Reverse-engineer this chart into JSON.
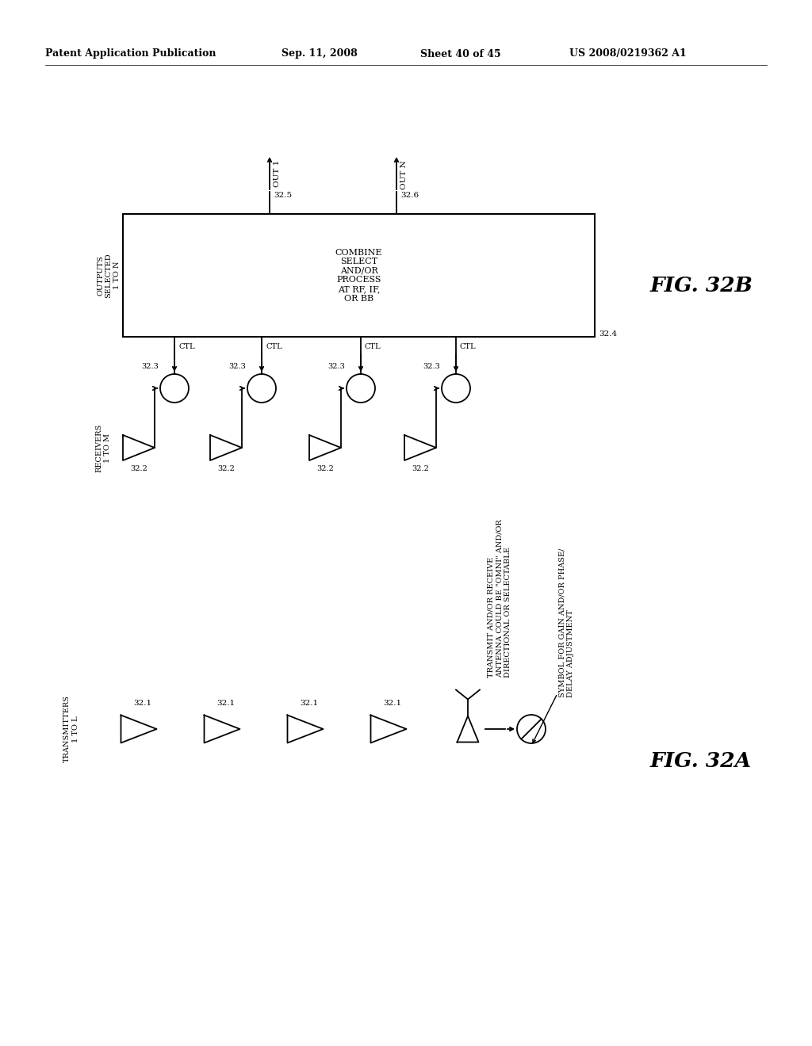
{
  "bg_color": "#ffffff",
  "header_text": "Patent Application Publication",
  "header_date": "Sep. 11, 2008",
  "header_sheet": "Sheet 40 of 45",
  "header_patent": "US 2008/0219362 A1",
  "fig32b_label": "FIG. 32B",
  "fig32a_label": "FIG. 32A",
  "box_text": "COMBINE\nSELECT\nAND/OR\nPROCESS\nAT RF, IF,\nOR BB",
  "box_label": "32.4",
  "out1_label": "OUT 1",
  "out1_num": "32.5",
  "outn_label": "OUT N",
  "outn_num": "32.6",
  "outputs_label": "OUTPUTS\nSELECTED\n1 TO N",
  "rec_label": "RECEIVERS\n1 TO M",
  "rec_num": "32.2",
  "circle_num": "32.3",
  "ctl_label": "CTL",
  "tx_label": "TRANSMITTERS\n1 TO L",
  "tx_num": "32.1",
  "antenna_note": "TRANSMIT AND/OR RECEIVE\nANTENNA COULD BE \"OMNI\" AND/OR\nDIRECTIONAL OR SELECTABLE",
  "symbol_note": "SYMBOL FOR GAIN AND/OR PHASE/\nDELAY ADJUSTMENT"
}
